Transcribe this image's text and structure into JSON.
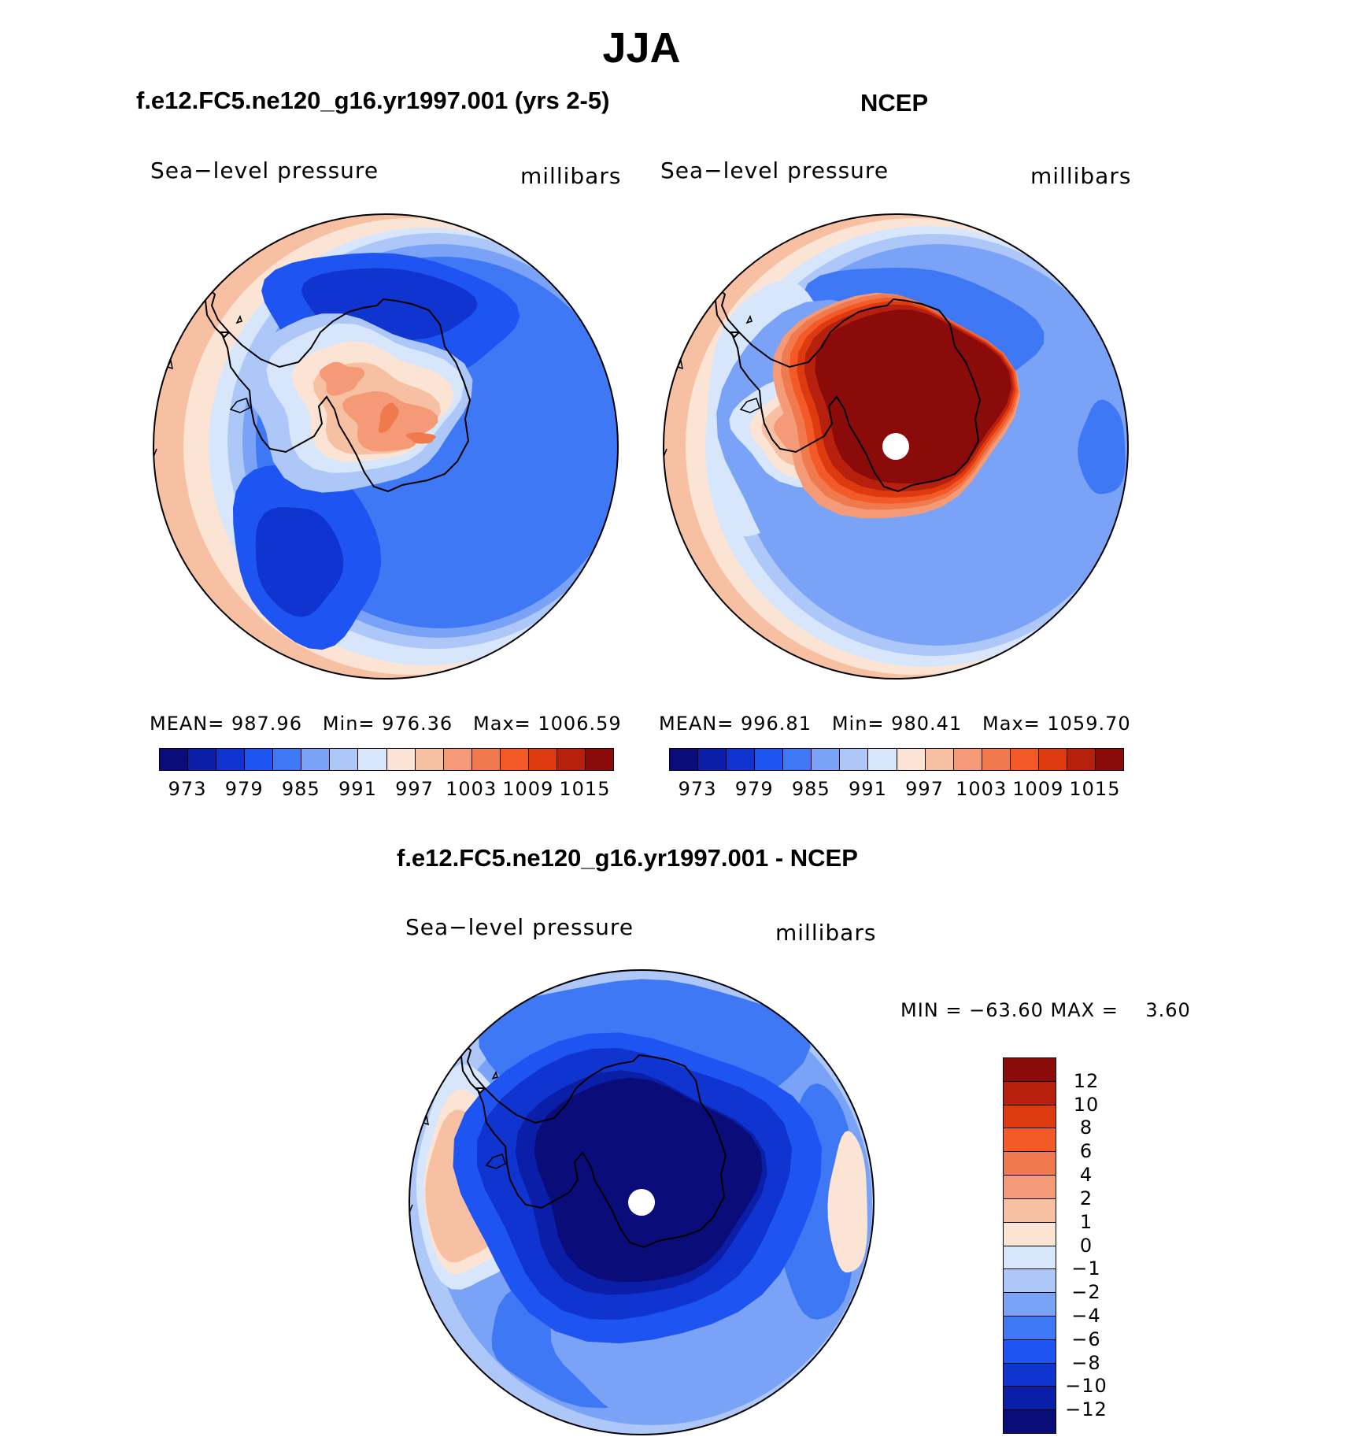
{
  "title": "JJA",
  "colors": {
    "scale": [
      "#0a0c7a",
      "#0b1ea8",
      "#0f34d0",
      "#1e54f2",
      "#3f78f5",
      "#7aa3f7",
      "#adc7f9",
      "#d8e6fc",
      "#fce4d4",
      "#f8c0a3",
      "#f49a77",
      "#f07a4e",
      "#f45a28",
      "#de3a10",
      "#b8200e",
      "#8b0a0a"
    ],
    "coast": "#000000",
    "fill_value": "#ffffff"
  },
  "panels": [
    {
      "subtitle": "f.e12.FC5.ne120_g16.yr1997.001 (yrs 2-5)",
      "variable": "Sea−level pressure",
      "units": "millibars",
      "stats": "MEAN= 987.96   Min= 976.36   Max= 1006.59",
      "colorbar_labels": [
        "973",
        "979",
        "985",
        "991",
        "997",
        "1003",
        "1009",
        "1015"
      ]
    },
    {
      "subtitle": "NCEP",
      "variable": "Sea−level pressure",
      "units": "millibars",
      "stats": "MEAN= 996.81   Min= 980.41   Max= 1059.70",
      "colorbar_labels": [
        "973",
        "979",
        "985",
        "991",
        "997",
        "1003",
        "1009",
        "1015"
      ]
    },
    {
      "subtitle": "f.e12.FC5.ne120_g16.yr1997.001 - NCEP",
      "variable": "Sea−level pressure",
      "units": "millibars",
      "stats": "MIN = −63.60 MAX =    3.60",
      "colorbar_labels": [
        "12",
        "10",
        "8",
        "6",
        "4",
        "2",
        "1",
        "0",
        "−1",
        "−2",
        "−4",
        "−6",
        "−8",
        "−10",
        "−12"
      ]
    }
  ]
}
